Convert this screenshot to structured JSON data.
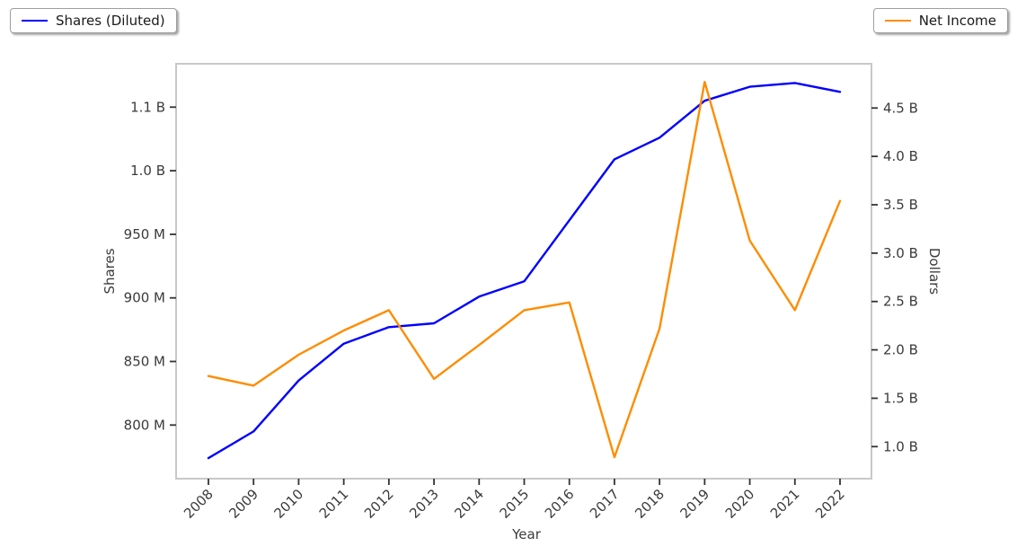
{
  "chart_data": {
    "type": "line",
    "title": "",
    "xlabel": "Year",
    "ylabel_left": "Shares",
    "ylabel_right": "Dollars",
    "grid": false,
    "legend_position": "top-left and top-right, outside plot",
    "x": [
      2008,
      2009,
      2010,
      2011,
      2012,
      2013,
      2014,
      2015,
      2016,
      2017,
      2018,
      2019,
      2020,
      2021,
      2022
    ],
    "series": [
      {
        "name": "Shares (Diluted)",
        "axis": "left",
        "color": "#0000ff",
        "unit": "shares",
        "values_millions": [
          774,
          795,
          835,
          864,
          877,
          880,
          901,
          913,
          961,
          1009,
          1026,
          1055,
          1066,
          1069,
          1062
        ]
      },
      {
        "name": "Net Income",
        "axis": "right",
        "color": "#ff8c00",
        "unit": "dollars",
        "values_billions": [
          1.73,
          1.63,
          1.95,
          2.2,
          2.41,
          1.7,
          2.05,
          2.41,
          2.49,
          0.89,
          2.22,
          4.77,
          3.13,
          2.41,
          3.54
        ]
      }
    ],
    "left_axis": {
      "tick_values_millions": [
        800,
        850,
        900,
        950,
        1000,
        1050
      ],
      "tick_labels": [
        "800 M",
        "850 M",
        "900 M",
        "950 M",
        "1.0 B",
        "1.1 B"
      ],
      "approx_range_millions": [
        765,
        1082
      ]
    },
    "right_axis": {
      "tick_values_billions": [
        1.0,
        1.5,
        2.0,
        2.5,
        3.0,
        3.5,
        4.0,
        4.5
      ],
      "tick_labels": [
        "1.0 B",
        "1.5 B",
        "2.0 B",
        "2.5 B",
        "3.0 B",
        "3.5 B",
        "4.0 B",
        "4.5 B"
      ],
      "approx_range_billions": [
        0.72,
        4.88
      ]
    },
    "x_tick_labels": [
      "2008",
      "2009",
      "2010",
      "2011",
      "2012",
      "2013",
      "2014",
      "2015",
      "2016",
      "2017",
      "2018",
      "2019",
      "2020",
      "2021",
      "2022"
    ]
  },
  "colors": {
    "shares_line": "#0000ff",
    "net_income_line": "#ff8c00",
    "spine": "#c8c8c8",
    "tick_mark": "#333333",
    "tick_label": "#3b3b3b",
    "background": "#ffffff"
  }
}
